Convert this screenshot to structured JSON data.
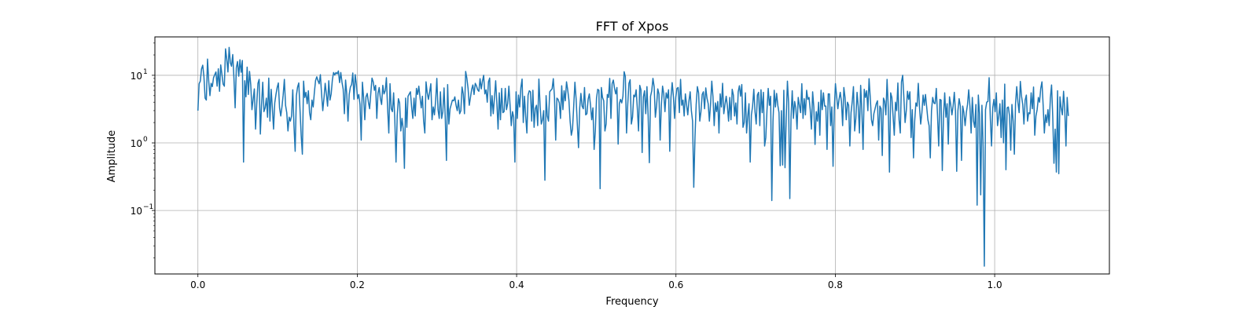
{
  "chart_data": {
    "type": "line",
    "title": "FFT of Xpos",
    "xlabel": "Frequency",
    "ylabel": "Amplitude",
    "xlim": [
      -0.054,
      1.144
    ],
    "ylim": [
      0.0115,
      37
    ],
    "yscale": "log",
    "grid": true,
    "x_ticks": [
      0.0,
      0.2,
      0.4,
      0.6,
      0.8,
      1.0
    ],
    "x_tick_labels": [
      "0.0",
      "0.2",
      "0.4",
      "0.6",
      "0.8",
      "1.0"
    ],
    "y_ticks": [
      {
        "value": 10,
        "base": "10",
        "exp": "1"
      },
      {
        "value": 1,
        "base": "10",
        "exp": "0"
      },
      {
        "value": 0.1,
        "base": "10",
        "exp": "−1"
      }
    ],
    "series": [
      {
        "color": "#1f77b4",
        "x_start": 0.0,
        "x_end": 1.0925,
        "values": [
          3.0,
          7.5,
          8.2,
          12.4,
          14.1,
          9.6,
          4.6,
          4.3,
          17.4,
          8.2,
          5.0,
          7.6,
          6.8,
          9.2,
          10.2,
          11.2,
          6.9,
          12.5,
          5.8,
          14.2,
          10.3,
          7.4,
          6.9,
          24.6,
          17.6,
          11.2,
          25.9,
          15.4,
          13.6,
          20.3,
          9.1,
          3.3,
          13.0,
          16.0,
          9.7,
          17.0,
          11.1,
          16.6,
          0.52,
          8.3,
          4.8,
          13.2,
          5.2,
          11.4,
          7.3,
          3.1,
          4.4,
          6.3,
          1.6,
          3.8,
          7.6,
          8.7,
          1.35,
          3.7,
          7.9,
          2.9,
          3.3,
          4.6,
          2.4,
          9.1,
          2.1,
          6.2,
          3.3,
          1.6,
          3.9,
          5.2,
          6.6,
          7.7,
          3.3,
          2.5,
          3.4,
          5.1,
          8.7,
          3.6,
          2.8,
          1.5,
          2.4,
          2.1,
          2.5,
          6.1,
          1.8,
          0.75,
          5.0,
          6.7,
          7.7,
          3.2,
          1.3,
          0.68,
          8.2,
          4.7,
          5.6,
          3.8,
          5.9,
          2.8,
          2.2,
          4.3,
          3.4,
          5.6,
          8.4,
          9.5,
          8.3,
          7.5,
          10.2,
          5.3,
          3.0,
          4.6,
          7.6,
          5.3,
          3.5,
          8.3,
          4.3,
          5.3,
          8.6,
          11.0,
          10.1,
          11.0,
          10.5,
          11.6,
          7.8,
          11.0,
          7.9,
          6.2,
          2.7,
          8.5,
          5.2,
          2.1,
          5.2,
          6.7,
          7.3,
          10.8,
          4.4,
          10.2,
          7.3,
          4.5,
          5.2,
          3.7,
          1.1,
          7.9,
          4.7,
          2.2,
          4.8,
          5.4,
          4.0,
          3.2,
          5.4,
          9.1,
          8.0,
          6.0,
          7.1,
          2.3,
          5.4,
          6.6,
          4.5,
          3.7,
          7.1,
          5.3,
          5.9,
          9.2,
          3.2,
          1.4,
          7.5,
          3.2,
          2.9,
          5.5,
          2.2,
          0.52,
          2.5,
          4.5,
          3.9,
          1.5,
          2.3,
          1.6,
          0.42,
          4.6,
          1.7,
          4.9,
          5.3,
          5.7,
          3.4,
          2.3,
          4.6,
          2.5,
          6.4,
          5.2,
          6.9,
          4.7,
          3.3,
          4.9,
          2.1,
          1.4,
          8.0,
          5.5,
          4.4,
          5.7,
          7.5,
          2.2,
          3.4,
          2.6,
          4.2,
          9.0,
          3.1,
          2.3,
          5.7,
          2.3,
          2.9,
          6.5,
          2.4,
          0.55,
          7.3,
          1.9,
          3.2,
          3.7,
          4.3,
          4.2,
          4.8,
          3.6,
          3.0,
          4.3,
          2.7,
          3.0,
          6.7,
          5.3,
          2.7,
          11.4,
          9.1,
          6.4,
          3.6,
          4.7,
          6.2,
          7.2,
          5.2,
          7.6,
          7.0,
          6.1,
          5.8,
          8.9,
          6.3,
          8.2,
          10.0,
          5.3,
          6.1,
          4.0,
          8.0,
          9.1,
          2.5,
          5.0,
          2.7,
          4.7,
          8.3,
          3.9,
          1.6,
          5.5,
          2.2,
          6.4,
          2.8,
          2.9,
          6.4,
          3.1,
          3.8,
          6.9,
          3.6,
          1.8,
          2.9,
          2.4,
          0.52,
          5.7,
          2.3,
          5.1,
          3.4,
          6.6,
          8.8,
          2.0,
          4.9,
          2.5,
          1.4,
          5.1,
          5.9,
          5.7,
          2.1,
          6.0,
          1.7,
          3.2,
          3.6,
          1.8,
          8.8,
          3.6,
          1.9,
          2.2,
          3.0,
          0.28,
          5.0,
          2.5,
          2.1,
          5.7,
          6.0,
          6.3,
          8.9,
          4.7,
          1.1,
          4.6,
          4.4,
          3.9,
          2.3,
          7.0,
          3.1,
          5.9,
          4.2,
          8.0,
          6.1,
          4.3,
          2.1,
          1.3,
          1.6,
          3.5,
          7.9,
          4.5,
          1.9,
          0.85,
          3.3,
          5.4,
          3.5,
          3.2,
          6.6,
          2.6,
          2.7,
          4.4,
          5.3,
          3.6,
          2.2,
          3.3,
          0.8,
          1.5,
          4.6,
          6.2,
          6.0,
          0.21,
          6.6,
          4.7,
          4.2,
          1.5,
          1.9,
          5.2,
          4.7,
          9.0,
          2.3,
          7.5,
          8.5,
          6.4,
          5.3,
          6.6,
          0.96,
          3.8,
          4.4,
          3.9,
          4.9,
          11.3,
          9.6,
          1.4,
          3.7,
          7.6,
          8.6,
          1.9,
          2.4,
          5.1,
          4.8,
          6.1,
          3.2,
          1.5,
          7.1,
          6.1,
          0.72,
          4.8,
          5.9,
          2.7,
          6.8,
          2.5,
          0.51,
          4.9,
          5.9,
          9.0,
          6.8,
          2.4,
          3.5,
          6.3,
          5.3,
          1.1,
          3.6,
          6.9,
          5.3,
          2.9,
          5.5,
          4.6,
          6.1,
          0.75,
          4.7,
          7.8,
          5.0,
          2.3,
          4.7,
          6.4,
          6.6,
          2.8,
          8.7,
          3.6,
          4.3,
          2.5,
          5.3,
          3.7,
          2.6,
          4.2,
          5.7,
          3.0,
          2.1,
          0.22,
          1.2,
          3.7,
          6.8,
          5.5,
          2.1,
          2.9,
          5.2,
          5.7,
          3.2,
          6.5,
          4.6,
          3.8,
          2.1,
          3.8,
          8.2,
          4.8,
          1.8,
          3.9,
          2.9,
          4.1,
          1.4,
          5.3,
          3.4,
          7.6,
          2.7,
          3.7,
          4.9,
          3.5,
          2.1,
          4.7,
          2.2,
          6.2,
          5.1,
          2.5,
          3.9,
          1.9,
          5.7,
          7.0,
          4.9,
          7.3,
          1.7,
          2.0,
          5.5,
          1.4,
          2.5,
          3.8,
          0.52,
          2.6,
          3.5,
          6.2,
          2.9,
          1.9,
          5.1,
          5.6,
          1.8,
          6.1,
          2.8,
          5.6,
          0.9,
          1.2,
          3.1,
          6.4,
          3.6,
          4.9,
          0.14,
          2.1,
          6.0,
          3.4,
          5.4,
          3.6,
          2.8,
          0.46,
          3.0,
          0.47,
          6.0,
          0.43,
          2.3,
          8.2,
          3.9,
          0.15,
          2.4,
          5.9,
          2.3,
          4.1,
          3.3,
          1.6,
          4.7,
          3.6,
          2.8,
          7.5,
          2.3,
          4.5,
          2.6,
          6.0,
          4.4,
          4.7,
          3.1,
          1.6,
          5.7,
          3.4,
          0.95,
          2.9,
          2.1,
          4.0,
          1.3,
          6.0,
          3.1,
          5.5,
          3.5,
          3.5,
          0.8,
          5.3,
          5.3,
          1.8,
          3.4,
          0.45,
          3.0,
          7.5,
          4.9,
          3.2,
          4.4,
          5.6,
          4.1,
          1.8,
          6.6,
          4.7,
          2.2,
          4.0,
          3.6,
          0.9,
          2.8,
          4.1,
          6.8,
          1.5,
          2.3,
          5.6,
          3.4,
          1.4,
          7.1,
          3.0,
          0.8,
          6.2,
          4.7,
          5.9,
          3.0,
          8.9,
          4.7,
          2.2,
          1.8,
          2.7,
          3.2,
          3.8,
          4.2,
          1.1,
          3.5,
          3.2,
          0.65,
          4.6,
          4.1,
          2.6,
          8.7,
          3.3,
          0.37,
          5.5,
          4.7,
          2.5,
          1.3,
          4.0,
          3.0,
          7.7,
          2.2,
          1.4,
          8.0,
          10.0,
          4.7,
          2.0,
          3.0,
          5.8,
          4.4,
          5.7,
          1.2,
          3.1,
          0.6,
          2.1,
          3.9,
          3.5,
          7.6,
          3.4,
          1.9,
          2.8,
          5.1,
          3.6,
          5.2,
          3.4,
          2.2,
          1.8,
          0.6,
          3.0,
          4.7,
          3.9,
          3.8,
          6.4,
          2.6,
          0.9,
          4.4,
          4.3,
          0.39,
          2.5,
          5.5,
          2.4,
          3.8,
          0.96,
          4.8,
          3.7,
          2.6,
          3.5,
          5.6,
          2.9,
          0.38,
          3.0,
          4.5,
          3.5,
          0.55,
          3.5,
          2.8,
          1.8,
          2.8,
          3.7,
          6.1,
          3.5,
          1.4,
          4.7,
          2.1,
          1.7,
          3.7,
          0.12,
          5.1,
          2.7,
          0.17,
          3.6,
          0.86,
          0.015,
          3.1,
          4.0,
          4.1,
          9.2,
          2.3,
          0.9,
          3.3,
          4.4,
          2.9,
          5.5,
          1.8,
          2.5,
          3.8,
          1.2,
          4.3,
          1.0,
          7.4,
          0.4,
          3.3,
          3.4,
          2.5,
          0.78,
          3.7,
          2.1,
          0.68,
          3.8,
          6.8,
          4.0,
          2.8,
          8.1,
          4.9,
          3.7,
          1.9,
          4.3,
          5.1,
          2.1,
          2.8,
          2.7,
          5.5,
          3.2,
          6.7,
          1.3,
          2.5,
          3.1,
          4.7,
          4.0,
          6.4,
          8.0,
          3.6,
          1.4,
          2.6,
          2.0,
          3.1,
          1.8,
          4.6,
          7.2,
          2.4,
          0.5,
          1.6,
          0.37,
          5.9,
          0.35,
          4.8,
          3.3,
          2.6,
          5.8,
          3.1,
          0.9,
          4.7,
          2.5
        ]
      }
    ]
  }
}
